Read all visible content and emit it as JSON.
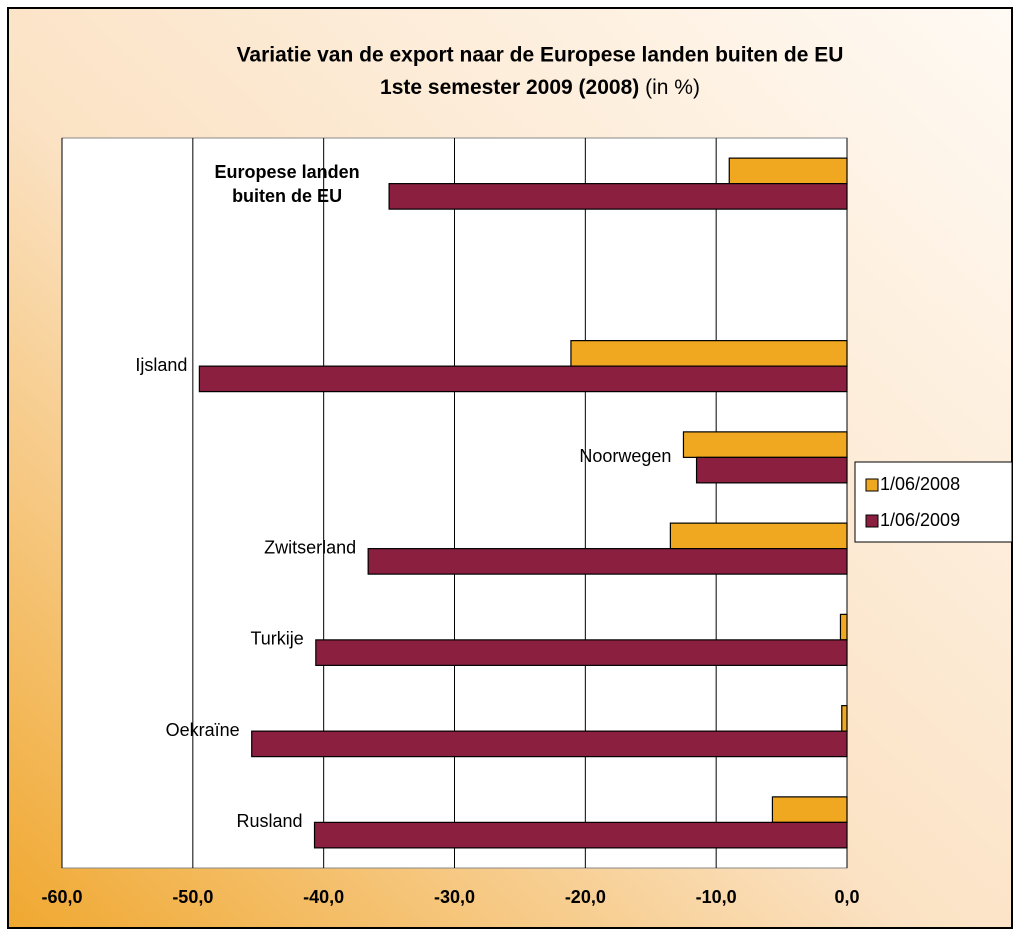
{
  "chart_data": {
    "type": "hbar",
    "title": "Variatie van de export naar de Europese landen buiten de EU",
    "subtitle": "1ste semester 2009 (2008)",
    "subtitle_unit": "(in %)",
    "categories": [
      "Europese landen buiten de EU",
      null,
      "Ijsland",
      "Noorwegen",
      "Zwitserland",
      "Turkije",
      "Oekraïne",
      "Rusland"
    ],
    "series": [
      {
        "name": "1/06/2008",
        "color": "#f0a820",
        "values": [
          -9.0,
          null,
          -21.1,
          -12.5,
          -13.5,
          -0.5,
          -0.4,
          -5.7
        ]
      },
      {
        "name": "1/06/2009",
        "color": "#8b1f40",
        "values": [
          -35.0,
          null,
          -49.5,
          -11.5,
          -36.6,
          -40.6,
          -45.5,
          -40.7
        ]
      }
    ],
    "xlim": [
      -60,
      0
    ],
    "xticks": [
      {
        "value": -60,
        "label": "-60,0"
      },
      {
        "value": -50,
        "label": "-50,0"
      },
      {
        "value": -40,
        "label": "-40,0"
      },
      {
        "value": -30,
        "label": "-30,0"
      },
      {
        "value": -20,
        "label": "-20,0"
      },
      {
        "value": -10,
        "label": "-10,0"
      },
      {
        "value": 0,
        "label": "0,0"
      }
    ],
    "grid": true,
    "legend": "right"
  }
}
